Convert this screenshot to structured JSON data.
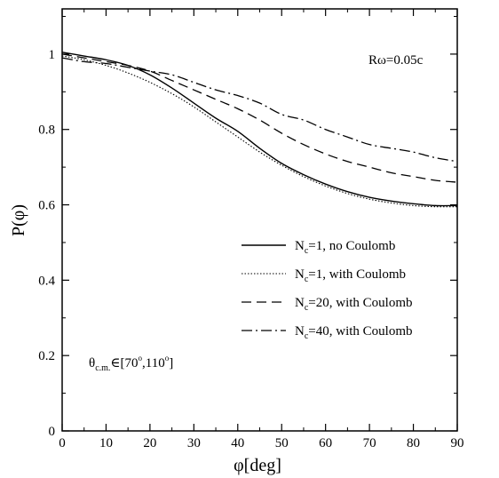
{
  "chart_data": {
    "type": "line",
    "xlabel": "φ[deg]",
    "ylabel": "P(φ)",
    "xlim": [
      0,
      90
    ],
    "ylim": [
      0,
      1.12
    ],
    "x_ticks": [
      "0",
      "10",
      "20",
      "30",
      "40",
      "50",
      "60",
      "70",
      "80",
      "90"
    ],
    "y_ticks": [
      "0",
      "0.2",
      "0.4",
      "0.6",
      "0.8",
      "1"
    ],
    "grid": false,
    "legend_position": "center-right",
    "annotations": {
      "r_omega": "Rω=0.05c",
      "theta_range": {
        "symbol": "θ",
        "subscript": "c.m.",
        "text": "∈[70",
        "sup": "o",
        "text2": ",110",
        "sup2": "o",
        "text3": "]"
      }
    },
    "series": [
      {
        "legend_prefix": "N",
        "legend_sub": "c",
        "legend_suffix": "=1, no Coulomb",
        "style": "solid",
        "x": [
          0,
          5,
          10,
          15,
          20,
          25,
          30,
          35,
          40,
          45,
          50,
          55,
          60,
          65,
          70,
          75,
          80,
          85,
          90
        ],
        "y": [
          1.005,
          0.995,
          0.985,
          0.97,
          0.945,
          0.91,
          0.87,
          0.83,
          0.795,
          0.75,
          0.71,
          0.68,
          0.655,
          0.635,
          0.62,
          0.61,
          0.603,
          0.598,
          0.598
        ]
      },
      {
        "legend_prefix": "N",
        "legend_sub": "c",
        "legend_suffix": "=1, with Coulomb",
        "style": "dotted",
        "x": [
          0,
          5,
          10,
          15,
          20,
          25,
          30,
          35,
          40,
          45,
          50,
          55,
          60,
          65,
          70,
          75,
          80,
          85,
          90
        ],
        "y": [
          0.995,
          0.985,
          0.97,
          0.95,
          0.925,
          0.895,
          0.86,
          0.82,
          0.78,
          0.74,
          0.705,
          0.675,
          0.65,
          0.63,
          0.615,
          0.605,
          0.598,
          0.595,
          0.595
        ]
      },
      {
        "legend_prefix": "N",
        "legend_sub": "c",
        "legend_suffix": "=20, with Coulomb",
        "style": "dashed",
        "x": [
          0,
          5,
          10,
          15,
          20,
          25,
          30,
          35,
          40,
          45,
          50,
          55,
          60,
          65,
          70,
          75,
          80,
          85,
          90
        ],
        "y": [
          1.0,
          0.99,
          0.98,
          0.97,
          0.955,
          0.93,
          0.905,
          0.88,
          0.855,
          0.825,
          0.79,
          0.76,
          0.735,
          0.715,
          0.7,
          0.685,
          0.675,
          0.665,
          0.66
        ]
      },
      {
        "legend_prefix": "N",
        "legend_sub": "c",
        "legend_suffix": "=40, with Coulomb",
        "style": "dashdot",
        "x": [
          0,
          5,
          10,
          15,
          20,
          25,
          30,
          35,
          40,
          45,
          50,
          55,
          60,
          65,
          70,
          75,
          80,
          85,
          90
        ],
        "y": [
          0.99,
          0.98,
          0.975,
          0.965,
          0.955,
          0.945,
          0.925,
          0.905,
          0.89,
          0.87,
          0.84,
          0.825,
          0.8,
          0.78,
          0.76,
          0.75,
          0.74,
          0.725,
          0.715
        ]
      }
    ]
  }
}
